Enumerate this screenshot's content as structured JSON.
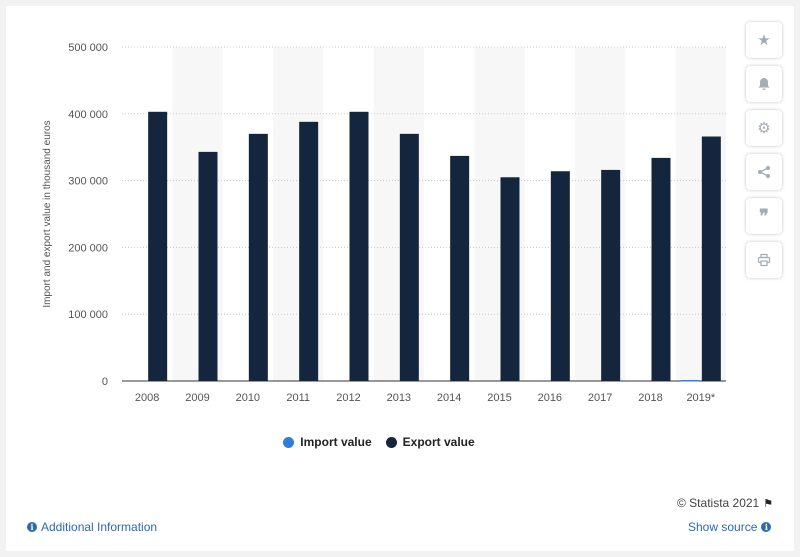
{
  "chart_data": {
    "type": "bar",
    "categories": [
      "2008",
      "2009",
      "2010",
      "2011",
      "2012",
      "2013",
      "2014",
      "2015",
      "2016",
      "2017",
      "2018",
      "2019*"
    ],
    "series": [
      {
        "name": "Import value",
        "color": "#2f7ed8",
        "values": [
          0,
          0,
          0,
          0,
          0,
          0,
          0,
          0,
          0,
          0,
          0,
          1500
        ]
      },
      {
        "name": "Export value",
        "color": "#13263e",
        "values": [
          403000,
          343000,
          370000,
          388000,
          403000,
          370000,
          337000,
          305000,
          314000,
          316000,
          334000,
          366000
        ]
      }
    ],
    "ylabel": "Import and export value in thousand euros",
    "ylim": [
      0,
      500000
    ],
    "yticks": [
      "0",
      "100 000",
      "200 000",
      "300 000",
      "400 000",
      "500 000"
    ],
    "ytick_values": [
      0,
      100000,
      200000,
      300000,
      400000,
      500000
    ],
    "grid": true,
    "legend_position": "bottom"
  },
  "toolbar": {
    "icons": [
      "star-icon",
      "bell-icon",
      "gear-icon",
      "share-icon",
      "quote-icon",
      "print-icon"
    ]
  },
  "footer": {
    "credit": "© Statista 2021",
    "additional_info": "Additional Information",
    "show_source": "Show source"
  }
}
